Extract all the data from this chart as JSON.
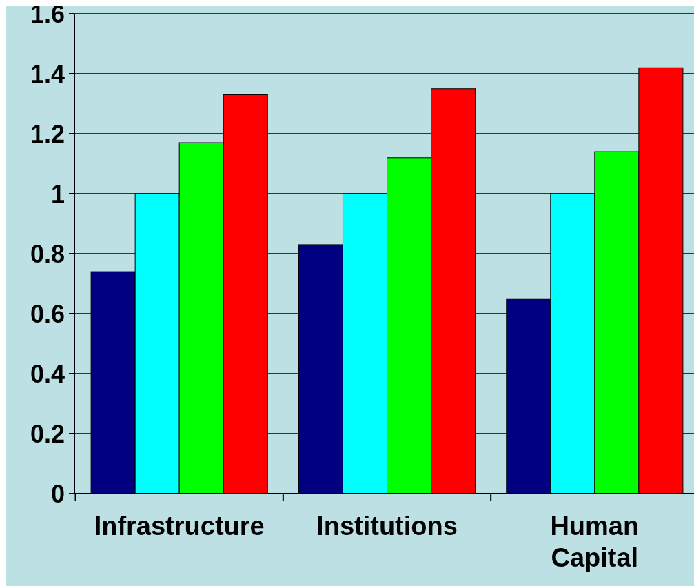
{
  "chart_data": {
    "type": "bar",
    "categories": [
      "Infrastructure",
      "Institutions",
      "Human Capital"
    ],
    "series": [
      {
        "color": "#000080",
        "values": [
          0.74,
          0.83,
          0.65
        ]
      },
      {
        "color": "#00ffff",
        "values": [
          1.0,
          1.0,
          1.0
        ]
      },
      {
        "color": "#00ff00",
        "values": [
          1.17,
          1.12,
          1.14
        ]
      },
      {
        "color": "#ff0000",
        "values": [
          1.33,
          1.35,
          1.42
        ]
      }
    ],
    "ylim": [
      0,
      1.6
    ],
    "yticks": [
      0,
      0.2,
      0.4,
      0.6,
      0.8,
      1,
      1.2,
      1.4,
      1.6
    ],
    "grid": "y"
  }
}
